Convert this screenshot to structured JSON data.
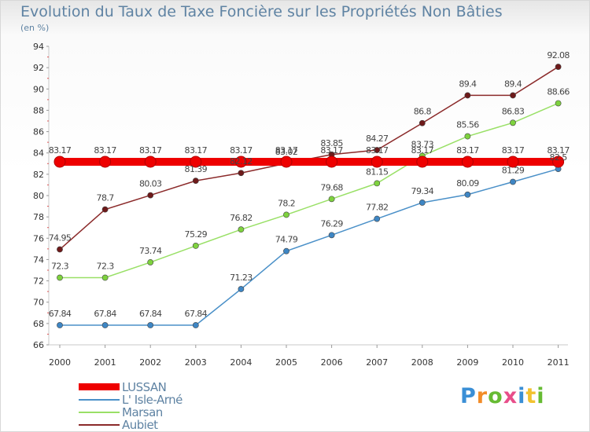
{
  "title": "Evolution du Taux de Taxe Foncière sur les Propriétés Non Bâties",
  "subtitle": "(en %)",
  "logo": {
    "text": "Proxiti",
    "colors": [
      "#3a8fd6",
      "#f28c28",
      "#66bb33",
      "#e84e8a",
      "#3a8fd6",
      "#f2c230",
      "#66bb33"
    ]
  },
  "chart_data": {
    "type": "line",
    "title": "Evolution du Taux de Taxe Foncière sur les Propriétés Non Bâties",
    "ylabel": "(en %)",
    "x": [
      "2000",
      "2001",
      "2002",
      "2003",
      "2004",
      "2005",
      "2006",
      "2007",
      "2008",
      "2009",
      "2010",
      "2011"
    ],
    "ylim": [
      66,
      94
    ],
    "yticks": [
      66,
      68,
      70,
      72,
      74,
      76,
      78,
      80,
      82,
      84,
      86,
      88,
      90,
      92,
      94
    ],
    "grid": false,
    "legend_position": "bottom-left",
    "series": [
      {
        "name": "LUSSAN",
        "color": "#ee0000",
        "bold": true,
        "values": [
          83.17,
          83.17,
          83.17,
          83.17,
          83.17,
          83.17,
          83.17,
          83.17,
          83.17,
          83.17,
          83.17,
          83.17
        ],
        "labels": [
          "83.17",
          "83.17",
          "83.17",
          "83.17",
          "83.17",
          "83.17",
          "83.17",
          "83.17",
          "83.17",
          "83.17",
          "83.17",
          "83.17"
        ]
      },
      {
        "name": "L' Isle-Arné",
        "color": "#4a90c8",
        "dot": "#3e86c4",
        "values": [
          67.84,
          67.84,
          67.84,
          67.84,
          71.23,
          74.79,
          76.29,
          77.82,
          79.34,
          80.09,
          81.29,
          82.5
        ],
        "labels": [
          "67.84",
          "67.84",
          "67.84",
          "67.84",
          "71.23",
          "74.79",
          "76.29",
          "77.82",
          "79.34",
          "80.09",
          "81.29",
          "82.5"
        ]
      },
      {
        "name": "Marsan",
        "color": "#99e066",
        "dot": "#7ed23e",
        "values": [
          72.3,
          72.3,
          73.74,
          75.29,
          76.82,
          78.2,
          79.68,
          81.15,
          83.73,
          85.56,
          86.83,
          88.66
        ],
        "labels": [
          "72.3",
          "72.3",
          "73.74",
          "75.29",
          "76.82",
          "78.2",
          "79.68",
          "81.15",
          "83.73",
          "85.56",
          "86.83",
          "88.66"
        ]
      },
      {
        "name": "Aubiet",
        "color": "#8b2a2a",
        "dot": "#6e1a1a",
        "values": [
          74.95,
          78.7,
          80.03,
          81.39,
          82.12,
          83.02,
          83.85,
          84.27,
          86.8,
          89.4,
          89.4,
          92.08
        ],
        "labels": [
          "74.95",
          "78.7",
          "80.03",
          "81.39",
          "82.12",
          "83.02",
          "83.85",
          "84.27",
          "86.8",
          "89.4",
          "89.4",
          "92.08"
        ]
      }
    ]
  }
}
